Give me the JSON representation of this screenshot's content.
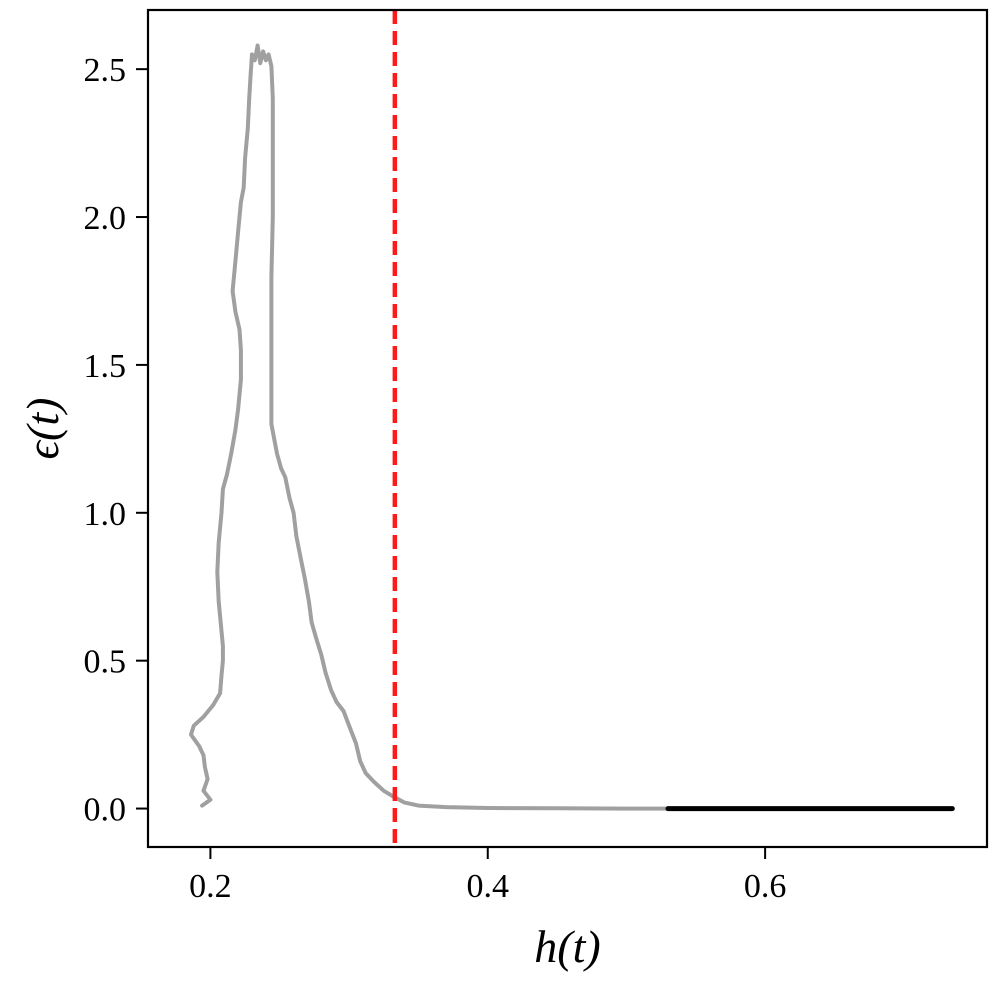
{
  "chart_data": {
    "type": "line",
    "xlabel": "h(t)",
    "ylabel": "ϵ(t)",
    "xlim": [
      0.155,
      0.76
    ],
    "ylim": [
      -0.13,
      2.7
    ],
    "x_ticks": [
      0.2,
      0.4,
      0.6
    ],
    "x_tick_labels": [
      "0.2",
      "0.4",
      "0.6"
    ],
    "y_ticks": [
      0.0,
      0.5,
      1.0,
      1.5,
      2.0,
      2.5
    ],
    "y_tick_labels": [
      "0.0",
      "0.5",
      "1.0",
      "1.5",
      "2.0",
      "2.5"
    ],
    "grid": false,
    "vline": {
      "x": 0.333,
      "color": "#ff1a1a",
      "style": "dashed"
    },
    "series": [
      {
        "color": "#a0a0a0",
        "points": [
          [
            0.194,
            0.01
          ],
          [
            0.2,
            0.03
          ],
          [
            0.195,
            0.06
          ],
          [
            0.198,
            0.1
          ],
          [
            0.196,
            0.14
          ],
          [
            0.195,
            0.18
          ],
          [
            0.192,
            0.21
          ],
          [
            0.186,
            0.25
          ],
          [
            0.188,
            0.28
          ],
          [
            0.195,
            0.31
          ],
          [
            0.202,
            0.35
          ],
          [
            0.207,
            0.39
          ],
          [
            0.208,
            0.45
          ],
          [
            0.209,
            0.5
          ],
          [
            0.209,
            0.55
          ],
          [
            0.208,
            0.6
          ],
          [
            0.206,
            0.7
          ],
          [
            0.205,
            0.8
          ],
          [
            0.206,
            0.9
          ],
          [
            0.208,
            1.0
          ],
          [
            0.209,
            1.08
          ],
          [
            0.212,
            1.13
          ],
          [
            0.215,
            1.2
          ],
          [
            0.218,
            1.28
          ],
          [
            0.22,
            1.35
          ],
          [
            0.222,
            1.45
          ],
          [
            0.222,
            1.55
          ],
          [
            0.221,
            1.62
          ],
          [
            0.218,
            1.68
          ],
          [
            0.216,
            1.75
          ],
          [
            0.218,
            1.85
          ],
          [
            0.22,
            1.95
          ],
          [
            0.222,
            2.05
          ],
          [
            0.224,
            2.1
          ],
          [
            0.225,
            2.2
          ],
          [
            0.227,
            2.3
          ],
          [
            0.228,
            2.4
          ],
          [
            0.229,
            2.48
          ],
          [
            0.23,
            2.55
          ],
          [
            0.232,
            2.53
          ],
          [
            0.234,
            2.58
          ],
          [
            0.236,
            2.52
          ],
          [
            0.238,
            2.56
          ],
          [
            0.24,
            2.53
          ],
          [
            0.242,
            2.55
          ],
          [
            0.244,
            2.51
          ],
          [
            0.245,
            2.4
          ],
          [
            0.245,
            2.2
          ],
          [
            0.245,
            2.0
          ],
          [
            0.244,
            1.8
          ],
          [
            0.244,
            1.6
          ],
          [
            0.244,
            1.4
          ],
          [
            0.244,
            1.3
          ],
          [
            0.246,
            1.25
          ],
          [
            0.248,
            1.2
          ],
          [
            0.251,
            1.15
          ],
          [
            0.254,
            1.12
          ],
          [
            0.257,
            1.05
          ],
          [
            0.26,
            1.0
          ],
          [
            0.262,
            0.92
          ],
          [
            0.265,
            0.85
          ],
          [
            0.268,
            0.78
          ],
          [
            0.271,
            0.7
          ],
          [
            0.273,
            0.63
          ],
          [
            0.276,
            0.58
          ],
          [
            0.28,
            0.52
          ],
          [
            0.283,
            0.46
          ],
          [
            0.287,
            0.4
          ],
          [
            0.291,
            0.36
          ],
          [
            0.296,
            0.33
          ],
          [
            0.3,
            0.28
          ],
          [
            0.305,
            0.22
          ],
          [
            0.308,
            0.16
          ],
          [
            0.312,
            0.12
          ],
          [
            0.318,
            0.09
          ],
          [
            0.325,
            0.06
          ],
          [
            0.332,
            0.04
          ],
          [
            0.34,
            0.02
          ],
          [
            0.35,
            0.01
          ],
          [
            0.37,
            0.005
          ],
          [
            0.4,
            0.002
          ],
          [
            0.45,
            0.001
          ],
          [
            0.5,
            0.0
          ],
          [
            0.53,
            0.0
          ]
        ]
      },
      {
        "color": "#000000",
        "points": [
          [
            0.53,
            0.0
          ],
          [
            0.6,
            0.0
          ],
          [
            0.7,
            0.0
          ],
          [
            0.735,
            0.0
          ]
        ]
      }
    ]
  }
}
